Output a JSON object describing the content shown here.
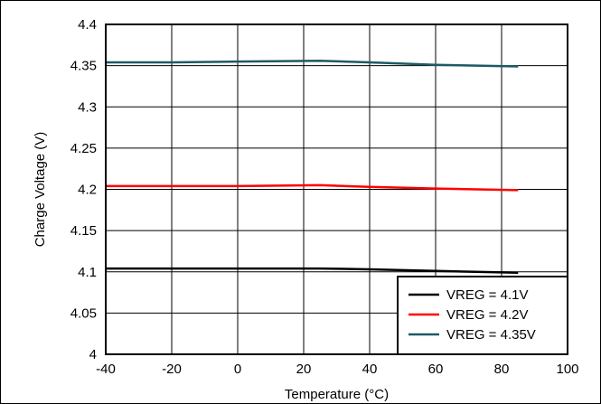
{
  "chart_data": {
    "type": "line",
    "title": "",
    "xlabel": "Temperature (°C)",
    "ylabel": "Charge Voltage (V)",
    "xlim": [
      -40,
      100
    ],
    "ylim": [
      4.0,
      4.4
    ],
    "xticks": [
      "-40",
      "-20",
      "0",
      "20",
      "40",
      "60",
      "80",
      "100"
    ],
    "yticks": [
      "4",
      "4.05",
      "4.1",
      "4.15",
      "4.2",
      "4.25",
      "4.3",
      "4.35",
      "4.4"
    ],
    "grid": true,
    "legend_position": "bottom-right",
    "x": [
      -40,
      -20,
      0,
      25,
      40,
      60,
      85
    ],
    "series": [
      {
        "name": "VREG = 4.1V",
        "color": "#000000",
        "values": [
          4.104,
          4.104,
          4.104,
          4.104,
          4.103,
          4.101,
          4.099
        ]
      },
      {
        "name": "VREG = 4.2V",
        "color": "#ff0000",
        "values": [
          4.204,
          4.204,
          4.204,
          4.205,
          4.203,
          4.201,
          4.199
        ]
      },
      {
        "name": "VREG = 4.35V",
        "color": "#1e5a63",
        "values": [
          4.354,
          4.354,
          4.355,
          4.356,
          4.354,
          4.351,
          4.349
        ]
      }
    ]
  }
}
